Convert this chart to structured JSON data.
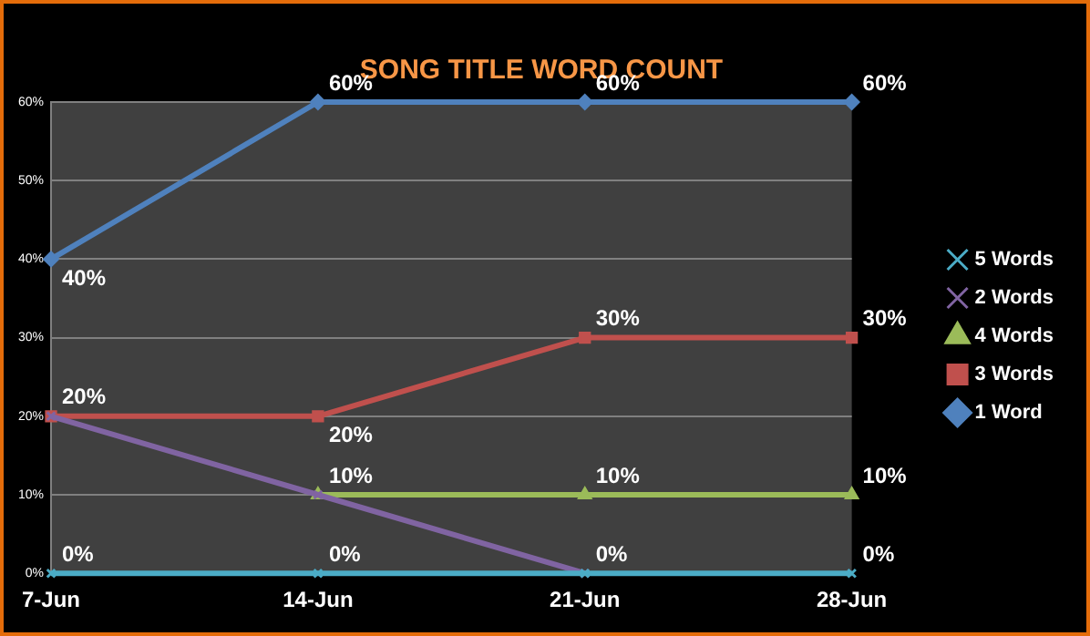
{
  "chart_data": {
    "type": "line",
    "title": "SONG TITLE WORD COUNT",
    "categories": [
      "7-Jun",
      "14-Jun",
      "21-Jun",
      "28-Jun"
    ],
    "series": [
      {
        "name": "1 Word",
        "color": "#4f81bd",
        "marker": "diamond",
        "values": [
          40,
          60,
          60,
          60
        ],
        "value_labels": [
          "40%",
          "60%",
          "60%",
          "60%"
        ]
      },
      {
        "name": "3 Words",
        "color": "#c0504d",
        "marker": "square",
        "values": [
          20,
          20,
          30,
          30
        ],
        "value_labels": [
          "20%",
          "20%",
          "30%",
          "30%"
        ]
      },
      {
        "name": "4 Words",
        "color": "#9bbb59",
        "marker": "triangle",
        "values": [
          null,
          10,
          10,
          10
        ],
        "value_labels": [
          null,
          "10%",
          "10%",
          "10%"
        ]
      },
      {
        "name": "2 Words",
        "color": "#8064a2",
        "marker": "cross",
        "values": [
          20,
          10,
          0,
          null
        ],
        "value_labels": [
          null,
          null,
          "0%",
          null
        ]
      },
      {
        "name": "5 Words",
        "color": "#4bacc6",
        "marker": "cross",
        "values": [
          0,
          0,
          0,
          0
        ],
        "value_labels": [
          "0%",
          "0%",
          null,
          "0%"
        ]
      }
    ],
    "ylim": [
      0,
      60
    ],
    "yticks": [
      {
        "value": 0,
        "label": "0%"
      },
      {
        "value": 10,
        "label": "10%"
      },
      {
        "value": 20,
        "label": "20%"
      },
      {
        "value": 30,
        "label": "30%"
      },
      {
        "value": 40,
        "label": "40%"
      },
      {
        "value": 50,
        "label": "50%"
      },
      {
        "value": 60,
        "label": "60%"
      }
    ],
    "grid": "y",
    "legend": "right",
    "line_style": "solid"
  }
}
